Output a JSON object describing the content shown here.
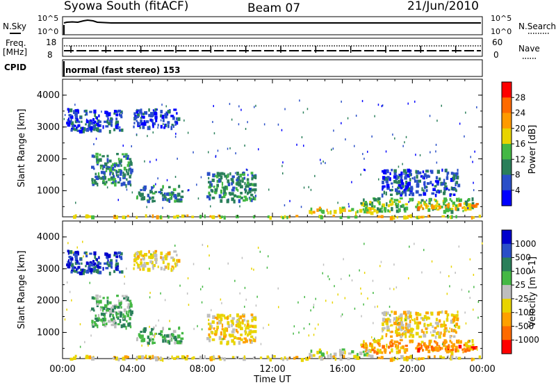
{
  "header": {
    "station": "Syowa South (fitACF)",
    "beam": "Beam 07",
    "date": "21/Jun/2010"
  },
  "top_panels": {
    "nsky_label": "N.Sky",
    "nsky_ticks": [
      "10^5",
      "10^0"
    ],
    "nsearch_label": "N.Search",
    "nsearch_ticks": [
      "10^5",
      "10^0"
    ],
    "freq_label": "Freq.",
    "freq_unit": "[MHz]",
    "freq_ticks": [
      "18",
      "8"
    ],
    "nave_label": "Nave",
    "nave_ticks": [
      "60",
      "0"
    ],
    "cpid_label": "CPID",
    "cpid_text": "normal (fast stereo) 153"
  },
  "chart_data": [
    {
      "type": "heatmap",
      "name": "power",
      "xlabel": "",
      "ylabel": "Slant Range [km]",
      "xlim": [
        0,
        24
      ],
      "ylim": [
        180,
        4500
      ],
      "yticks": [
        "1000",
        "2000",
        "3000",
        "4000"
      ],
      "colorbar": {
        "label": "Power [dB]",
        "ticks": [
          "4",
          "8",
          "12",
          "16",
          "20",
          "24",
          "28"
        ],
        "colors": [
          "#0000ff",
          "#2a4fc8",
          "#2a7f5a",
          "#44b844",
          "#e8d400",
          "#ff9a00",
          "#ff6a00",
          "#ff0000"
        ]
      },
      "clusters": [
        {
          "t": [
            0.2,
            3.4
          ],
          "r": [
            2900,
            3600
          ],
          "level": 1
        },
        {
          "t": [
            1.6,
            3.9
          ],
          "r": [
            1200,
            2200
          ],
          "level": 2
        },
        {
          "t": [
            4.0,
            6.6
          ],
          "r": [
            3000,
            3600
          ],
          "level": 1
        },
        {
          "t": [
            4.2,
            6.8
          ],
          "r": [
            700,
            1200
          ],
          "level": 2
        },
        {
          "t": [
            8.2,
            11.0
          ],
          "r": [
            700,
            1600
          ],
          "level": 2
        },
        {
          "t": [
            14.0,
            17.6
          ],
          "r": [
            350,
            500
          ],
          "level": 4
        },
        {
          "t": [
            17.0,
            23.4
          ],
          "r": [
            380,
            800
          ],
          "level": 3
        },
        {
          "t": [
            18.2,
            22.6
          ],
          "r": [
            900,
            1700
          ],
          "level": 1
        },
        {
          "t": [
            20.2,
            23.9
          ],
          "r": [
            480,
            620
          ],
          "level": 5
        },
        {
          "t": [
            0.0,
            24.0
          ],
          "r": [
            200,
            260
          ],
          "level": 4
        }
      ]
    },
    {
      "type": "heatmap",
      "name": "velocity",
      "xlabel": "Time UT",
      "ylabel": "Slant Range [km]",
      "xlim": [
        0,
        24
      ],
      "ylim": [
        180,
        4500
      ],
      "xticks": [
        "00:00",
        "04:00",
        "08:00",
        "12:00",
        "16:00",
        "20:00",
        "00:00"
      ],
      "yticks": [
        "1000",
        "2000",
        "3000",
        "4000"
      ],
      "colorbar": {
        "label": "Velocity [m s-1]",
        "ticks": [
          "1000",
          "500",
          "100",
          "25",
          "-25",
          "-100",
          "-500",
          "-1000"
        ],
        "colors": [
          "#0000cc",
          "#2a4fc8",
          "#2a7f5a",
          "#44b844",
          "#bebebe",
          "#e8d400",
          "#ffa000",
          "#ff6a00",
          "#ff0000"
        ]
      },
      "clusters": [
        {
          "t": [
            0.2,
            3.4
          ],
          "r": [
            2900,
            3600
          ],
          "level": 1
        },
        {
          "t": [
            1.6,
            3.9
          ],
          "r": [
            1200,
            2200
          ],
          "level": 3
        },
        {
          "t": [
            4.0,
            6.6
          ],
          "r": [
            3000,
            3600
          ],
          "level": 5
        },
        {
          "t": [
            4.2,
            6.8
          ],
          "r": [
            700,
            1200
          ],
          "level": 3
        },
        {
          "t": [
            8.2,
            11.0
          ],
          "r": [
            700,
            1600
          ],
          "level": 5
        },
        {
          "t": [
            14.0,
            17.6
          ],
          "r": [
            300,
            500
          ],
          "level": 4
        },
        {
          "t": [
            17.0,
            23.4
          ],
          "r": [
            400,
            800
          ],
          "level": 6
        },
        {
          "t": [
            18.2,
            22.6
          ],
          "r": [
            900,
            1700
          ],
          "level": 5
        },
        {
          "t": [
            20.2,
            23.9
          ],
          "r": [
            480,
            620
          ],
          "level": 7
        },
        {
          "t": [
            0.0,
            24.0
          ],
          "r": [
            200,
            300
          ],
          "level": 5
        }
      ]
    }
  ]
}
